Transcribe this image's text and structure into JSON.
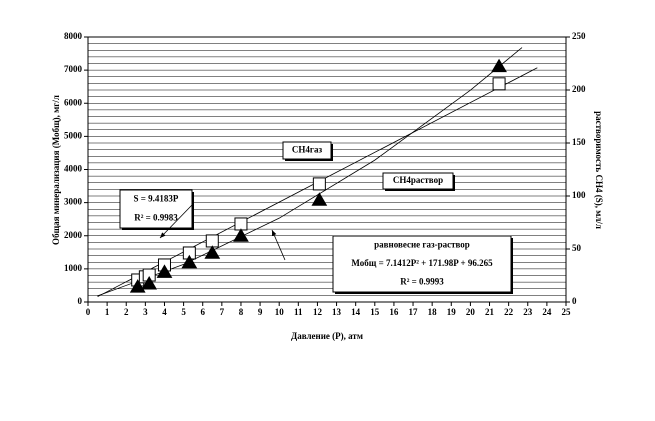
{
  "chart_data": {
    "type": "scatter",
    "x_label": "Давление (P), атм",
    "y_label": "Общая минерализация (Мобщ), мг/л",
    "y2_label": "растворимость CH4 (S), мл/л",
    "xlim": [
      0,
      25
    ],
    "xticks": [
      0,
      1,
      2,
      3,
      4,
      5,
      6,
      7,
      8,
      9,
      10,
      11,
      12,
      13,
      14,
      15,
      16,
      17,
      18,
      19,
      20,
      21,
      22,
      23,
      24,
      25
    ],
    "ylim": [
      0,
      8000
    ],
    "yticks": [
      0,
      1000,
      2000,
      3000,
      4000,
      5000,
      6000,
      7000,
      8000
    ],
    "y2lim": [
      0,
      250
    ],
    "y2ticks": [
      0,
      50,
      100,
      150,
      200,
      250
    ],
    "grid": true,
    "series": [
      {
        "marker": "square",
        "axis": "y",
        "color": "#ffffff",
        "x": [
          2.6,
          3.0,
          3.2,
          4.0,
          5.3,
          6.5,
          8.0,
          12.1,
          21.5
        ],
        "values": [
          665,
          760,
          815,
          1118,
          1480,
          1843,
          2356,
          3565,
          6586
        ]
      },
      {
        "marker": "triangle",
        "axis": "y2",
        "color": "#000000",
        "x": [
          2.6,
          3.2,
          4.0,
          5.3,
          6.5,
          8.0,
          12.1,
          21.5
        ],
        "values": [
          14,
          17,
          28,
          37,
          46,
          62,
          96,
          222
        ]
      }
    ],
    "trendlines": [
      {
        "axis": "y",
        "x": [
          0.5,
          5,
          10,
          15,
          20,
          22.7
        ],
        "values": [
          184,
          1135,
          2531,
          4283,
          6393,
          7681
        ]
      },
      {
        "axis": "y2",
        "x": [
          0.5,
          23.5
        ],
        "values": [
          5,
          221
        ]
      }
    ],
    "annotations": [
      {
        "lines": [
          "CH4газ"
        ]
      },
      {
        "lines": [
          "CH4раствор"
        ]
      },
      {
        "lines": [
          "S = 9.4183P",
          "R² = 0.9983"
        ]
      },
      {
        "lines": [
          "равновесие газ-раствор",
          "Мобщ = 7.1412P² + 171.98P + 96.265",
          "R² = 0.9993"
        ]
      }
    ]
  }
}
